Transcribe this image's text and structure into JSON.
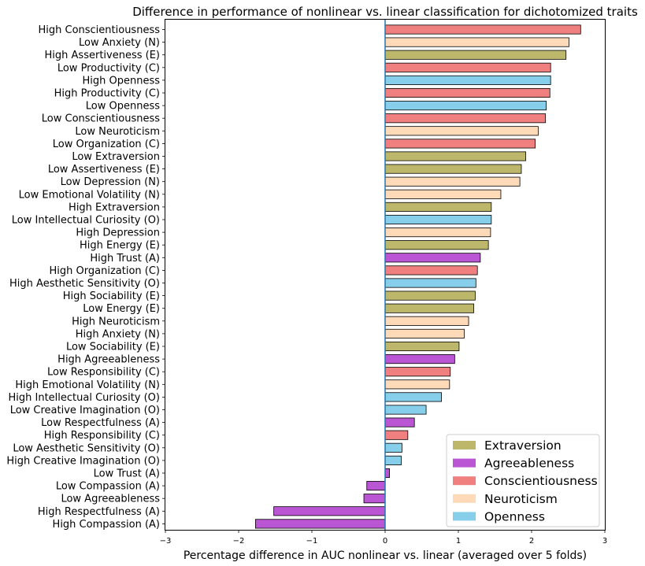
{
  "chart_data": {
    "type": "bar",
    "orientation": "horizontal",
    "title": "Difference in performance of nonlinear vs. linear classification for dichotomized traits",
    "xlabel": "Percentage difference in AUC nonlinear vs. linear (averaged over 5 folds)",
    "ylabel": "",
    "xlim": [
      -3,
      3
    ],
    "xticks": [
      -3,
      -2,
      -1,
      0,
      1,
      2,
      3
    ],
    "xtick_labels": [
      "−3",
      "−2",
      "−1",
      "0",
      "1",
      "2",
      "3"
    ],
    "grid": false,
    "legend_position": "bottom-right",
    "zero_line_color": "#1f77b4",
    "legend": [
      {
        "name": "Extraversion",
        "color": "#bdb76b"
      },
      {
        "name": "Agreeableness",
        "color": "#ba55d3"
      },
      {
        "name": "Conscientiousness",
        "color": "#f08080"
      },
      {
        "name": "Neuroticism",
        "color": "#ffdab9"
      },
      {
        "name": "Openness",
        "color": "#87ceeb"
      }
    ],
    "categories": [
      "High Conscientiousness",
      "Low Anxiety (N)",
      "High Assertiveness (E)",
      "Low Productivity (C)",
      "High Openness",
      "High Productivity (C)",
      "Low Openness",
      "Low Conscientiousness",
      "Low Neuroticism",
      "Low Organization (C)",
      "Low Extraversion",
      "Low Assertiveness (E)",
      "Low Depression (N)",
      "Low Emotional Volatility (N)",
      "High Extraversion",
      "Low Intellectual Curiosity (O)",
      "High Depression",
      "High Energy (E)",
      "High Trust (A)",
      "High Organization (C)",
      "High Aesthetic Sensitivity (O)",
      "High Sociability (E)",
      "Low Energy (E)",
      "High Neuroticism",
      "High Anxiety (N)",
      "Low Sociability (E)",
      "High Agreeableness",
      "Low Responsibility (C)",
      "High Emotional Volatility (N)",
      "High Intellectual Curiosity (O)",
      "Low Creative Imagination (O)",
      "Low Respectfulness (A)",
      "High Responsibility (C)",
      "Low Aesthetic Sensitivity (O)",
      "High Creative Imagination (O)",
      "Low Trust (A)",
      "Low Compassion (A)",
      "Low Agreeableness",
      "High Respectfulness (A)",
      "High Compassion (A)"
    ],
    "values": [
      2.67,
      2.51,
      2.47,
      2.26,
      2.26,
      2.25,
      2.2,
      2.19,
      2.09,
      2.05,
      1.92,
      1.86,
      1.84,
      1.58,
      1.45,
      1.45,
      1.44,
      1.41,
      1.3,
      1.26,
      1.24,
      1.23,
      1.21,
      1.14,
      1.08,
      1.01,
      0.95,
      0.89,
      0.88,
      0.77,
      0.56,
      0.4,
      0.31,
      0.23,
      0.22,
      0.06,
      -0.25,
      -0.29,
      -1.52,
      -1.77
    ],
    "trait_groups": [
      "Conscientiousness",
      "Neuroticism",
      "Extraversion",
      "Conscientiousness",
      "Openness",
      "Conscientiousness",
      "Openness",
      "Conscientiousness",
      "Neuroticism",
      "Conscientiousness",
      "Extraversion",
      "Extraversion",
      "Neuroticism",
      "Neuroticism",
      "Extraversion",
      "Openness",
      "Neuroticism",
      "Extraversion",
      "Agreeableness",
      "Conscientiousness",
      "Openness",
      "Extraversion",
      "Extraversion",
      "Neuroticism",
      "Neuroticism",
      "Extraversion",
      "Agreeableness",
      "Conscientiousness",
      "Neuroticism",
      "Openness",
      "Openness",
      "Agreeableness",
      "Conscientiousness",
      "Openness",
      "Openness",
      "Agreeableness",
      "Agreeableness",
      "Agreeableness",
      "Agreeableness",
      "Agreeableness"
    ]
  }
}
